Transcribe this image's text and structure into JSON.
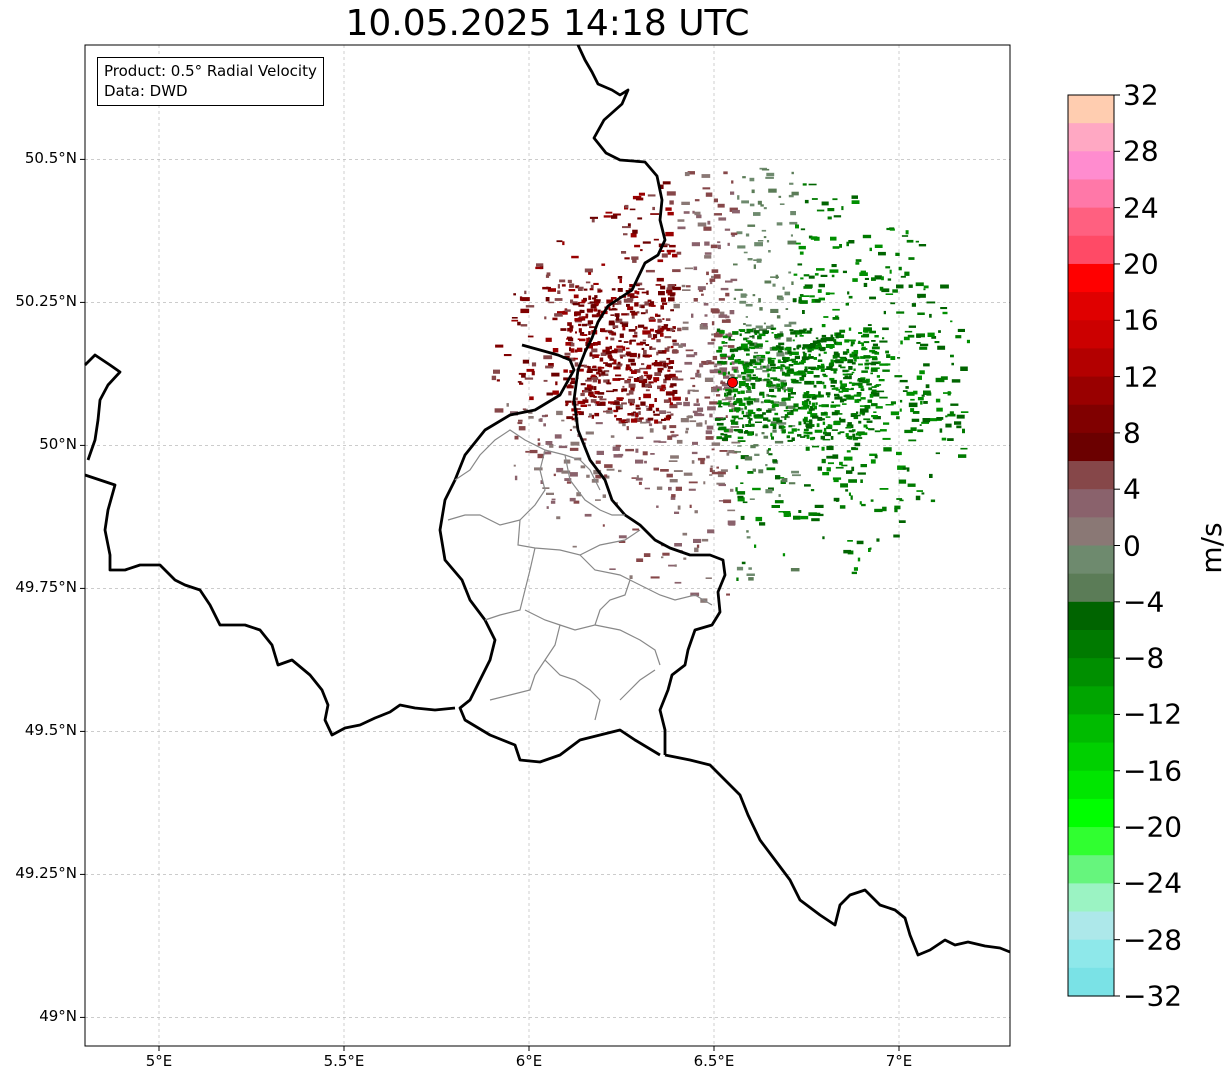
{
  "title": "10.05.2025 14:18 UTC",
  "info_box": {
    "product": "Product: 0.5° Radial Velocity",
    "source": "Data: DWD"
  },
  "map": {
    "lon_range": [
      4.8,
      7.3
    ],
    "lat_range": [
      48.95,
      50.7
    ],
    "lat_ticks": [
      {
        "value": 50.5,
        "label": "50.5°N"
      },
      {
        "value": 50.25,
        "label": "50.25°N"
      },
      {
        "value": 50.0,
        "label": "50°N"
      },
      {
        "value": 49.75,
        "label": "49.75°N"
      },
      {
        "value": 49.5,
        "label": "49.5°N"
      },
      {
        "value": 49.25,
        "label": "49.25°N"
      },
      {
        "value": 49.0,
        "label": "49°N"
      }
    ],
    "lon_ticks": [
      {
        "value": 5.0,
        "label": "5°E"
      },
      {
        "value": 5.5,
        "label": "5.5°E"
      },
      {
        "value": 6.0,
        "label": "6°E"
      },
      {
        "value": 6.5,
        "label": "6.5°E"
      },
      {
        "value": 7.0,
        "label": "7°E"
      }
    ],
    "radar_site": {
      "lon": 6.55,
      "lat": 50.11,
      "color": "#ff0000"
    },
    "gridlines": true
  },
  "colorbar": {
    "unit": "m/s",
    "range": [
      -32,
      32
    ],
    "ticks": [
      32,
      28,
      24,
      20,
      16,
      12,
      8,
      4,
      0,
      -4,
      -8,
      -12,
      -16,
      -20,
      -24,
      -28,
      -32
    ],
    "tick_labels": [
      "32",
      "28",
      "24",
      "20",
      "16",
      "12",
      "8",
      "4",
      "0",
      "−4",
      "−8",
      "−12",
      "−16",
      "−20",
      "−24",
      "−28",
      "−32"
    ],
    "colors_top_to_bottom": [
      "#ffcdb0",
      "#ffa8c3",
      "#ff8ccf",
      "#ff78a8",
      "#ff6080",
      "#ff4a66",
      "#ff0000",
      "#e00000",
      "#cc0000",
      "#b30000",
      "#990000",
      "#800000",
      "#6b0000",
      "#864749",
      "#8a626c",
      "#8a7875",
      "#6e8a6e",
      "#5b7c57",
      "#006400",
      "#007a00",
      "#008f00",
      "#00a500",
      "#00bb00",
      "#00d000",
      "#00e600",
      "#00ff00",
      "#30ff30",
      "#66f57d",
      "#9bf3c3",
      "#ade8ea",
      "#8ee8ea",
      "#7ae2e6"
    ]
  }
}
